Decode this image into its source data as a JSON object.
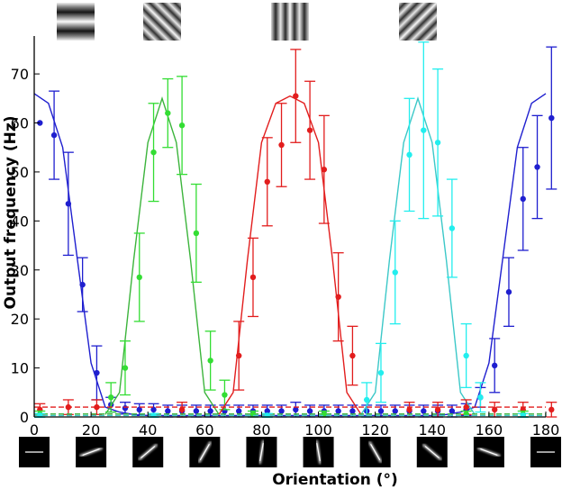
{
  "chart_data": {
    "type": "line",
    "title": "",
    "xlabel": "Orientation (°)",
    "ylabel": "Output frequency (Hz)",
    "xlim": [
      0,
      180
    ],
    "ylim": [
      0,
      77
    ],
    "xticks": [
      "0",
      "20",
      "40",
      "60",
      "80",
      "100",
      "120",
      "140",
      "160",
      "180"
    ],
    "yticks": [
      "0",
      "10",
      "20",
      "30",
      "40",
      "50",
      "60",
      "70"
    ],
    "grid": false,
    "legend": "none",
    "top_stimuli": [
      {
        "orientation": 0,
        "icon": "horizontal-grating-icon"
      },
      {
        "orientation": 45,
        "icon": "diagonal-grating-icon"
      },
      {
        "orientation": 90,
        "icon": "vertical-grating-icon"
      },
      {
        "orientation": 135,
        "icon": "antidiagonal-grating-icon"
      }
    ],
    "bottom_stimuli_orientations": [
      0,
      20,
      40,
      60,
      80,
      100,
      120,
      140,
      160,
      180
    ],
    "series": [
      {
        "color": "#1f1fcf",
        "curve_x": [
          0,
          5,
          10,
          15,
          20,
          25,
          30,
          35,
          40,
          45,
          50,
          55,
          60,
          65,
          70,
          75,
          80,
          85,
          90,
          95,
          100,
          105,
          110,
          115,
          120,
          125,
          130,
          135,
          140,
          145,
          150,
          155,
          160,
          165,
          170,
          175,
          180
        ],
        "curve_y": [
          66,
          64,
          55,
          33,
          11,
          2,
          1,
          0.5,
          0.3,
          0.3,
          0.3,
          0.3,
          0.3,
          0.3,
          0.3,
          0.3,
          0.3,
          0.3,
          0.3,
          0.3,
          0.3,
          0.3,
          0.3,
          0.3,
          0.3,
          0.3,
          0.3,
          0.3,
          0.3,
          0.5,
          1,
          2,
          11,
          33,
          55,
          64,
          66
        ],
        "points": [
          {
            "x": 2,
            "y": 60,
            "err": 0
          },
          {
            "x": 7,
            "y": 57.5,
            "err": 9
          },
          {
            "x": 12,
            "y": 43.5,
            "err": 10.5
          },
          {
            "x": 17,
            "y": 27,
            "err": 5.5
          },
          {
            "x": 22,
            "y": 9,
            "err": 5.5
          },
          {
            "x": 27,
            "y": 2.5,
            "err": 1.5
          },
          {
            "x": 32,
            "y": 1.8,
            "err": 1.2
          },
          {
            "x": 37,
            "y": 1.5,
            "err": 1.2
          },
          {
            "x": 42,
            "y": 1.5,
            "err": 1.2
          },
          {
            "x": 47,
            "y": 1.2,
            "err": 1.2
          },
          {
            "x": 52,
            "y": 1.2,
            "err": 1.2
          },
          {
            "x": 57,
            "y": 1.2,
            "err": 1.2
          },
          {
            "x": 62,
            "y": 1.2,
            "err": 1.2
          },
          {
            "x": 67,
            "y": 1.2,
            "err": 1.2
          },
          {
            "x": 72,
            "y": 1.2,
            "err": 1.2
          },
          {
            "x": 77,
            "y": 1.2,
            "err": 1.2
          },
          {
            "x": 82,
            "y": 1.2,
            "err": 1.2
          },
          {
            "x": 87,
            "y": 1.2,
            "err": 1.2
          },
          {
            "x": 92,
            "y": 1.5,
            "err": 1.5
          },
          {
            "x": 97,
            "y": 1.2,
            "err": 1.2
          },
          {
            "x": 102,
            "y": 1.2,
            "err": 1.2
          },
          {
            "x": 107,
            "y": 1.2,
            "err": 1.2
          },
          {
            "x": 112,
            "y": 1.2,
            "err": 1.2
          },
          {
            "x": 117,
            "y": 1.2,
            "err": 1.2
          },
          {
            "x": 122,
            "y": 1.2,
            "err": 1.2
          },
          {
            "x": 127,
            "y": 1.2,
            "err": 1.2
          },
          {
            "x": 132,
            "y": 1.2,
            "err": 1.2
          },
          {
            "x": 137,
            "y": 1.2,
            "err": 1.2
          },
          {
            "x": 142,
            "y": 1.2,
            "err": 1.2
          },
          {
            "x": 147,
            "y": 1.2,
            "err": 1.2
          },
          {
            "x": 152,
            "y": 1.5,
            "err": 1.2
          },
          {
            "x": 157,
            "y": 4,
            "err": 2
          },
          {
            "x": 162,
            "y": 10.5,
            "err": 5.5
          },
          {
            "x": 167,
            "y": 25.5,
            "err": 7
          },
          {
            "x": 172,
            "y": 44.5,
            "err": 10.5
          },
          {
            "x": 177,
            "y": 51,
            "err": 10.5
          },
          {
            "x": 182,
            "y": 61,
            "err": 14.5
          }
        ]
      },
      {
        "color": "#3cb43c",
        "point_color": "#33dd33",
        "curve_x": [
          25,
          30,
          35,
          40,
          45,
          50,
          55,
          60,
          65
        ],
        "curve_y": [
          0.5,
          5,
          32,
          56,
          65,
          56,
          32,
          5,
          0.5
        ],
        "points": [
          {
            "x": 27,
            "y": 4,
            "err": 3
          },
          {
            "x": 32,
            "y": 10,
            "err": 5.5
          },
          {
            "x": 37,
            "y": 28.5,
            "err": 9
          },
          {
            "x": 42,
            "y": 54,
            "err": 10
          },
          {
            "x": 47,
            "y": 62,
            "err": 7
          },
          {
            "x": 52,
            "y": 59.5,
            "err": 10
          },
          {
            "x": 57,
            "y": 37.5,
            "err": 10
          },
          {
            "x": 62,
            "y": 11.5,
            "err": 6
          },
          {
            "x": 67,
            "y": 4.5,
            "err": 3
          }
        ]
      },
      {
        "color": "#e21d1d",
        "curve_x": [
          65,
          70,
          75,
          80,
          85,
          90,
          95,
          100,
          105,
          110,
          115
        ],
        "curve_y": [
          0.5,
          5,
          32,
          56,
          64,
          65.5,
          64,
          56,
          32,
          5,
          0.5
        ],
        "points": [
          {
            "x": 72,
            "y": 12.5,
            "err": 7
          },
          {
            "x": 77,
            "y": 28.5,
            "err": 8
          },
          {
            "x": 82,
            "y": 48,
            "err": 9
          },
          {
            "x": 87,
            "y": 55.5,
            "err": 8.5
          },
          {
            "x": 92,
            "y": 65.5,
            "err": 9.5
          },
          {
            "x": 97,
            "y": 58.5,
            "err": 10
          },
          {
            "x": 102,
            "y": 50.5,
            "err": 11
          },
          {
            "x": 107,
            "y": 24.5,
            "err": 9
          },
          {
            "x": 112,
            "y": 12.5,
            "err": 6
          }
        ]
      },
      {
        "color": "#3cc8c8",
        "point_color": "#22eeee",
        "curve_x": [
          115,
          120,
          125,
          130,
          135,
          140,
          145,
          150,
          155
        ],
        "curve_y": [
          0.5,
          5,
          32,
          56,
          65,
          56,
          32,
          5,
          0.5
        ],
        "points": [
          {
            "x": 117,
            "y": 3.5,
            "err": 3.5
          },
          {
            "x": 122,
            "y": 9,
            "err": 6
          },
          {
            "x": 127,
            "y": 29.5,
            "err": 10.5
          },
          {
            "x": 132,
            "y": 53.5,
            "err": 11.5
          },
          {
            "x": 137,
            "y": 58.5,
            "err": 18
          },
          {
            "x": 142,
            "y": 56,
            "err": 15
          },
          {
            "x": 147,
            "y": 38.5,
            "err": 10
          },
          {
            "x": 152,
            "y": 12.5,
            "err": 6.5
          },
          {
            "x": 157,
            "y": 4,
            "err": 3
          }
        ]
      },
      {
        "color": "#e21d1d",
        "flat": true,
        "curve_x": [
          0,
          180
        ],
        "curve_y": [
          2,
          2
        ],
        "points": [
          {
            "x": 2,
            "y": 1.5,
            "err": 1.2
          },
          {
            "x": 12,
            "y": 2,
            "err": 1.5
          },
          {
            "x": 22,
            "y": 2,
            "err": 1.5
          },
          {
            "x": 52,
            "y": 1.5,
            "err": 1.5
          },
          {
            "x": 132,
            "y": 1.5,
            "err": 1.5
          },
          {
            "x": 142,
            "y": 1.5,
            "err": 1.5
          },
          {
            "x": 152,
            "y": 2,
            "err": 1.5
          },
          {
            "x": 162,
            "y": 1.5,
            "err": 1.5
          },
          {
            "x": 172,
            "y": 1.5,
            "err": 1.5
          },
          {
            "x": 182,
            "y": 1.5,
            "err": 1.5
          }
        ]
      },
      {
        "color": "#3cb43c",
        "point_color": "#33dd33",
        "flat": true,
        "curve_x": [
          0,
          180
        ],
        "curve_y": [
          0.6,
          0.6
        ],
        "points": [
          {
            "x": 2,
            "y": 0.6,
            "err": 0.6
          },
          {
            "x": 77,
            "y": 0.6,
            "err": 0.6
          },
          {
            "x": 102,
            "y": 0.6,
            "err": 0.6
          },
          {
            "x": 152,
            "y": 0.6,
            "err": 0.6
          },
          {
            "x": 172,
            "y": 0.6,
            "err": 0.6
          }
        ]
      },
      {
        "color": "#3cc8c8",
        "point_color": "#22eeee",
        "flat": true,
        "curve_x": [
          0,
          180
        ],
        "curve_y": [
          0.3,
          0.3
        ],
        "points": [
          {
            "x": 2,
            "y": 0.3,
            "err": 0.4
          },
          {
            "x": 42,
            "y": 0.3,
            "err": 0.4
          },
          {
            "x": 82,
            "y": 0.3,
            "err": 0.4
          },
          {
            "x": 172,
            "y": 0.3,
            "err": 0.4
          }
        ]
      }
    ]
  }
}
